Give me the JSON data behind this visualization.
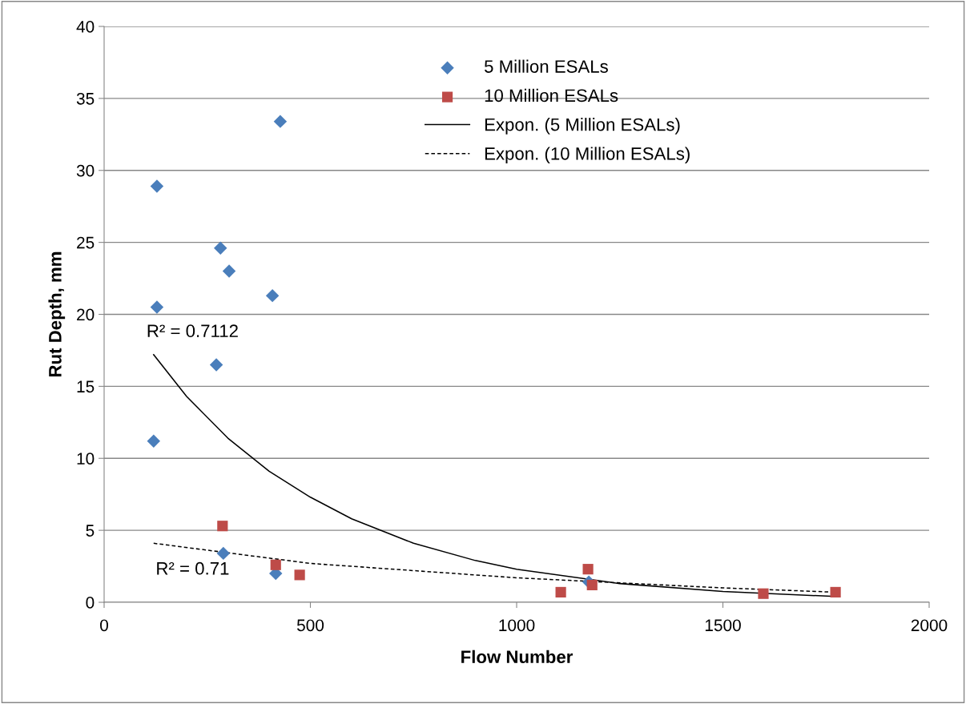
{
  "chart_data": {
    "type": "scatter",
    "xlabel": "Flow Number",
    "ylabel": "Rut Depth, mm",
    "xlim": [
      0,
      2000
    ],
    "xticks": [
      0,
      500,
      1000,
      1500,
      2000
    ],
    "ylim": [
      0,
      40
    ],
    "yticks": [
      0,
      5,
      10,
      15,
      20,
      25,
      30,
      35,
      40
    ],
    "grid": "y",
    "legend": "top",
    "series": [
      {
        "name": "5 Million ESALs",
        "marker": "diamond",
        "color": "#4a7ebb",
        "x": [
          128,
          427,
          282,
          303,
          128,
          408,
          272,
          120,
          289,
          416,
          1175
        ],
        "values": [
          28.9,
          33.4,
          24.6,
          23.0,
          20.5,
          21.3,
          16.5,
          11.2,
          3.4,
          2.0,
          1.4
        ]
      },
      {
        "name": "10 Million ESALs",
        "marker": "square",
        "color": "#be4b48",
        "x": [
          287,
          416,
          474,
          1107,
          1173,
          1183,
          1598,
          1773
        ],
        "values": [
          5.3,
          2.6,
          1.9,
          0.7,
          2.3,
          1.2,
          0.6,
          0.7
        ]
      },
      {
        "name": "Expon. (5 Million ESALs)",
        "type": "line",
        "line_style": "solid",
        "color": "#000000",
        "x": [
          120,
          200,
          300,
          400,
          500,
          600,
          750,
          900,
          1000,
          1250,
          1500,
          1773
        ],
        "values": [
          17.2,
          14.3,
          11.4,
          9.1,
          7.3,
          5.8,
          4.1,
          2.9,
          2.3,
          1.3,
          0.75,
          0.4
        ]
      },
      {
        "name": "Expon. (10 Million ESALs)",
        "type": "line",
        "line_style": "dashed",
        "color": "#000000",
        "x": [
          120,
          500,
          1000,
          1500,
          1773
        ],
        "values": [
          4.1,
          2.7,
          1.7,
          1.0,
          0.7
        ]
      }
    ],
    "annotations": [
      "R² = 0.7112",
      "R² = 0.71"
    ]
  }
}
